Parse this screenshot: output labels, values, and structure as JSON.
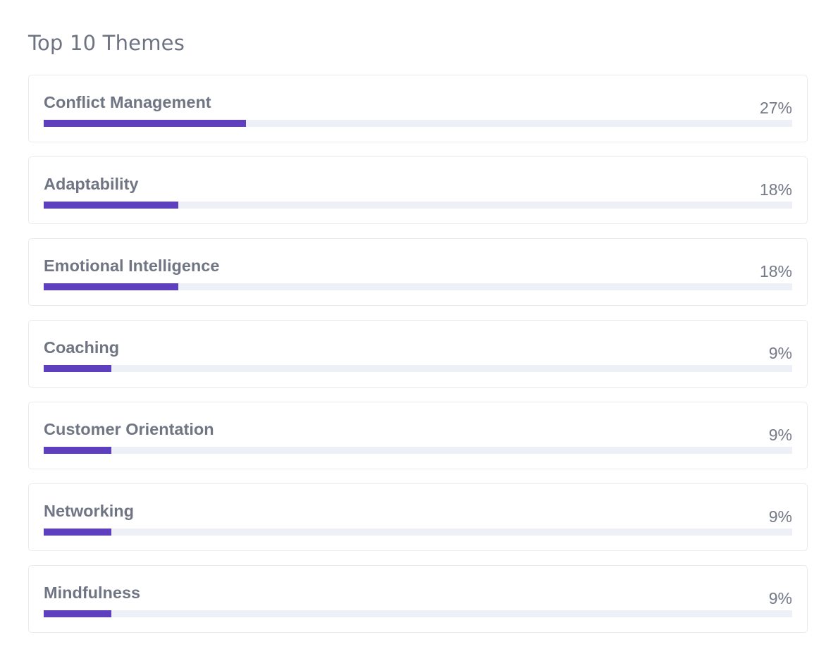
{
  "widget": {
    "title": "Top 10 Themes"
  },
  "colors": {
    "bar_fill": "#5e3fbd",
    "bar_track": "#eef0f7",
    "text": "#707584",
    "card_border": "#e9ebf0"
  },
  "themes": [
    {
      "name": "Conflict Management",
      "percent_label": "27%",
      "value": 27
    },
    {
      "name": "Adaptability",
      "percent_label": "18%",
      "value": 18
    },
    {
      "name": "Emotional Intelligence",
      "percent_label": "18%",
      "value": 18
    },
    {
      "name": "Coaching",
      "percent_label": "9%",
      "value": 9
    },
    {
      "name": "Customer Orientation",
      "percent_label": "9%",
      "value": 9
    },
    {
      "name": "Networking",
      "percent_label": "9%",
      "value": 9
    },
    {
      "name": "Mindfulness",
      "percent_label": "9%",
      "value": 9
    }
  ]
}
